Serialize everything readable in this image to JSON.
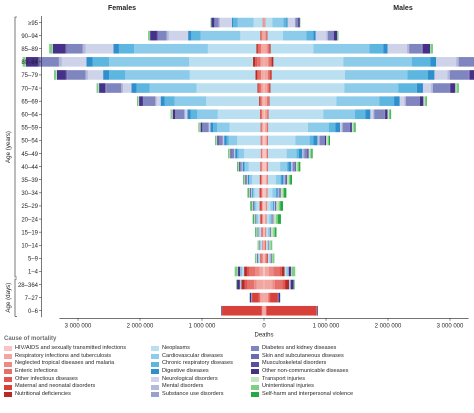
{
  "chart_data": {
    "type": "bar",
    "subtype": "population-pyramid (stacked, diverging)",
    "left_label": "Females",
    "right_label": "Males",
    "ylabel": "Age (years)",
    "ylabel_days": "Age (days)",
    "xlabel": "Deaths",
    "xlim": [
      -3300000,
      3300000
    ],
    "x_ticks": [
      {
        "value": -3000000,
        "label": "3 000 000"
      },
      {
        "value": -2000000,
        "label": "2 000 000"
      },
      {
        "value": -1000000,
        "label": "1 000 000"
      },
      {
        "value": 0,
        "label": "0"
      },
      {
        "value": 1000000,
        "label": "1 000 000"
      },
      {
        "value": 2000000,
        "label": "2 000 000"
      },
      {
        "value": 3000000,
        "label": "3 000 000"
      }
    ],
    "grid": false,
    "legend_position": "bottom",
    "categories": [
      "≥95",
      "90–94",
      "85–89",
      "80–84",
      "75–79",
      "70–74",
      "65–69",
      "60–64",
      "55–59",
      "50–54",
      "45–49",
      "40–44",
      "35–39",
      "30–34",
      "25–29",
      "20–24",
      "15–19",
      "10–14",
      "5–9",
      "1–4",
      "28–364",
      "7–27",
      "0–6"
    ],
    "day_group_start": 20,
    "legend_title": "Cause of mortality",
    "series": [
      {
        "name": "HIV/AIDS and sexually transmitted infections",
        "color": "#f7c6c2"
      },
      {
        "name": "Respiratory infections and tuberculosis",
        "color": "#f1a6a0"
      },
      {
        "name": "Neglected tropical diseases and malaria",
        "color": "#ec8a84"
      },
      {
        "name": "Enteric infections",
        "color": "#e5716b"
      },
      {
        "name": "Other infectious diseases",
        "color": "#df5650"
      },
      {
        "name": "Maternal and neonatal disorders",
        "color": "#d8403c"
      },
      {
        "name": "Nutritional deficiencies",
        "color": "#b52a25"
      },
      {
        "name": "Neoplasms",
        "color": "#b9dff1"
      },
      {
        "name": "Cardiovascular diseases",
        "color": "#8ccbe9"
      },
      {
        "name": "Chronic respiratory diseases",
        "color": "#5db6e0"
      },
      {
        "name": "Digestive diseases",
        "color": "#2f8fcd"
      },
      {
        "name": "Neurological disorders",
        "color": "#cfd3ea"
      },
      {
        "name": "Mental disorders",
        "color": "#b4b9dc"
      },
      {
        "name": "Substance use disorders",
        "color": "#9aa0cd"
      },
      {
        "name": "Diabetes and kidney diseases",
        "color": "#7f86bf"
      },
      {
        "name": "Skin and subcutaneous diseases",
        "color": "#6c6cb1"
      },
      {
        "name": "Musculoskeletal disorders",
        "color": "#5a4f9e"
      },
      {
        "name": "Other non-communicable diseases",
        "color": "#45308a"
      },
      {
        "name": "Transport injuries",
        "color": "#c2e6bf"
      },
      {
        "name": "Unintentional injuries",
        "color": "#7dcf85"
      },
      {
        "name": "Self-harm and interpersonal violence",
        "color": "#27a844"
      }
    ],
    "females": [
      [
        0,
        9000,
        0,
        6000,
        4000,
        0,
        3000,
        145000,
        260000,
        68000,
        24000,
        190000,
        22000,
        0,
        62000,
        2000,
        6000,
        48000,
        0,
        14000,
        0
      ],
      [
        0,
        28000,
        0,
        16000,
        9000,
        0,
        9000,
        320000,
        640000,
        150000,
        52000,
        310000,
        36000,
        0,
        140000,
        4000,
        13000,
        110000,
        3000,
        28000,
        2000
      ],
      [
        1000,
        46000,
        1000,
        35000,
        22000,
        0,
        20000,
        780000,
        1190000,
        245000,
        90000,
        445000,
        48000,
        1000,
        255000,
        8000,
        20000,
        200000,
        7000,
        46000,
        3000
      ],
      [
        2000,
        52000,
        2000,
        52000,
        34000,
        0,
        35000,
        1030000,
        1290000,
        265000,
        103000,
        395000,
        46000,
        2000,
        305000,
        10000,
        19000,
        198000,
        8000,
        40000,
        3000
      ],
      [
        2000,
        44000,
        3000,
        38000,
        25000,
        0,
        25000,
        1060000,
        1040000,
        260000,
        98000,
        245000,
        36000,
        2000,
        295000,
        8000,
        14000,
        145000,
        11000,
        30000,
        4000
      ],
      [
        4000,
        34000,
        4000,
        30000,
        19000,
        0,
        16000,
        980000,
        760000,
        210000,
        82000,
        135000,
        24000,
        3000,
        245000,
        6000,
        10000,
        98000,
        13000,
        21000,
        4000
      ],
      [
        6000,
        25000,
        4000,
        22000,
        14000,
        0,
        10000,
        850000,
        510000,
        160000,
        66000,
        66000,
        16000,
        3000,
        190000,
        4000,
        7000,
        62000,
        13000,
        15000,
        5000
      ],
      [
        8000,
        20000,
        4000,
        17000,
        10000,
        0,
        6000,
        680000,
        330000,
        106000,
        54000,
        34000,
        11000,
        4000,
        140000,
        3000,
        4000,
        42000,
        13000,
        13000,
        6000
      ],
      [
        12000,
        15000,
        4000,
        13000,
        8000,
        1000,
        4000,
        500000,
        200000,
        62000,
        44000,
        18000,
        9000,
        4000,
        96000,
        2000,
        3000,
        28000,
        13000,
        11000,
        8000
      ],
      [
        16000,
        12000,
        5000,
        10000,
        7000,
        2000,
        3000,
        380000,
        132000,
        38000,
        38000,
        11000,
        8000,
        5000,
        62000,
        2000,
        2000,
        22000,
        13000,
        10000,
        9000
      ],
      [
        18000,
        10000,
        5000,
        8000,
        6000,
        4000,
        2000,
        270000,
        88000,
        22000,
        32000,
        7000,
        7000,
        5000,
        38000,
        2000,
        2000,
        17000,
        12000,
        9000,
        10000
      ],
      [
        20000,
        9000,
        5000,
        7000,
        5000,
        12000,
        2000,
        186000,
        60000,
        13000,
        26000,
        5000,
        7000,
        5000,
        22000,
        1000,
        2000,
        14000,
        11000,
        8000,
        12000
      ],
      [
        21000,
        8000,
        5000,
        7000,
        5000,
        22000,
        2000,
        120000,
        42000,
        8000,
        19000,
        4000,
        6000,
        4000,
        14000,
        1000,
        1000,
        12000,
        11000,
        8000,
        14000
      ],
      [
        19000,
        7000,
        5000,
        6000,
        5000,
        30000,
        2000,
        76000,
        29000,
        5000,
        13000,
        3000,
        5000,
        3000,
        9000,
        1000,
        1000,
        11000,
        11000,
        8000,
        16000
      ],
      [
        16000,
        6000,
        5000,
        6000,
        5000,
        32000,
        2000,
        50000,
        20000,
        3000,
        9000,
        3000,
        4000,
        2000,
        6000,
        1000,
        1000,
        10000,
        12000,
        9000,
        18000
      ],
      [
        12000,
        5000,
        5000,
        6000,
        5000,
        27000,
        2000,
        35000,
        14000,
        2000,
        6000,
        3000,
        3000,
        2000,
        4000,
        1000,
        1000,
        9000,
        13000,
        9000,
        18000
      ],
      [
        7000,
        4000,
        6000,
        7000,
        5000,
        12000,
        2000,
        26000,
        9000,
        2000,
        4000,
        3000,
        2000,
        1000,
        3000,
        1000,
        1000,
        8000,
        13000,
        11000,
        14000
      ],
      [
        3000,
        4000,
        7000,
        7000,
        6000,
        0,
        3000,
        19000,
        5000,
        2000,
        3000,
        3000,
        1000,
        0,
        2000,
        1000,
        1000,
        8000,
        9000,
        12000,
        5000
      ],
      [
        4000,
        8000,
        16000,
        16000,
        11000,
        0,
        7000,
        22000,
        6000,
        3000,
        3000,
        4000,
        1000,
        0,
        2000,
        1000,
        1000,
        10000,
        10000,
        18000,
        3000
      ],
      [
        13000,
        58000,
        74000,
        90000,
        40000,
        0,
        46000,
        28000,
        12000,
        4000,
        5000,
        8000,
        1000,
        0,
        3000,
        2000,
        1000,
        34000,
        8000,
        44000,
        2000
      ],
      [
        3000,
        115000,
        40000,
        105000,
        32000,
        16000,
        55000,
        3000,
        8000,
        2000,
        3000,
        4000,
        0,
        0,
        2000,
        2000,
        0,
        45000,
        1000,
        14000,
        1000
      ],
      [
        1000,
        52000,
        6000,
        14000,
        14000,
        104000,
        6000,
        0,
        3000,
        1000,
        1000,
        2000,
        0,
        0,
        0,
        1000,
        0,
        25000,
        0,
        4000,
        0
      ],
      [
        1000,
        26000,
        1000,
        2000,
        6000,
        640000,
        1000,
        0,
        1000,
        0,
        0,
        1000,
        0,
        0,
        0,
        0,
        0,
        12000,
        0,
        3000,
        0
      ]
    ],
    "males": [
      [
        0,
        10000,
        0,
        5000,
        4000,
        0,
        3000,
        115000,
        175000,
        50000,
        18000,
        115000,
        13000,
        0,
        40000,
        1000,
        3000,
        26000,
        0,
        9000,
        0
      ],
      [
        0,
        27000,
        0,
        12000,
        8000,
        0,
        8000,
        250000,
        380000,
        112000,
        38000,
        172000,
        20000,
        1000,
        92000,
        3000,
        6000,
        52000,
        2000,
        18000,
        1000
      ],
      [
        1000,
        52000,
        1000,
        22000,
        15000,
        0,
        17000,
        690000,
        900000,
        225000,
        72000,
        310000,
        34000,
        2000,
        205000,
        6000,
        10000,
        116000,
        6000,
        36000,
        4000
      ],
      [
        2000,
        66000,
        2000,
        30000,
        24000,
        0,
        28000,
        1130000,
        1100000,
        300000,
        96000,
        320000,
        38000,
        3000,
        300000,
        7000,
        11000,
        126000,
        11000,
        40000,
        5000
      ],
      [
        3000,
        56000,
        3000,
        25000,
        18000,
        0,
        20000,
        1180000,
        1010000,
        330000,
        104000,
        210000,
        34000,
        4000,
        305000,
        6000,
        9000,
        102000,
        16000,
        33000,
        7000
      ],
      [
        5000,
        46000,
        4000,
        21000,
        14000,
        0,
        14000,
        1190000,
        870000,
        300000,
        100000,
        130000,
        25000,
        5000,
        270000,
        5000,
        7000,
        80000,
        20000,
        26000,
        9000
      ],
      [
        8000,
        36000,
        5000,
        18000,
        11000,
        0,
        10000,
        1080000,
        690000,
        240000,
        92000,
        72000,
        18000,
        7000,
        220000,
        3000,
        5000,
        56000,
        22000,
        22000,
        11000
      ],
      [
        12000,
        28000,
        5000,
        15000,
        9000,
        0,
        7000,
        880000,
        510000,
        168000,
        82000,
        40000,
        14000,
        10000,
        168000,
        2000,
        3000,
        40000,
        23000,
        20000,
        14000
      ],
      [
        17000,
        22000,
        5000,
        12000,
        7000,
        0,
        5000,
        640000,
        340000,
        104000,
        74000,
        22000,
        12000,
        12000,
        114000,
        2000,
        2000,
        28000,
        24000,
        19000,
        17000
      ],
      [
        23000,
        18000,
        5000,
        10000,
        6000,
        0,
        4000,
        440000,
        230000,
        62000,
        66000,
        13000,
        11000,
        12000,
        78000,
        1000,
        2000,
        22000,
        25000,
        18000,
        19000
      ],
      [
        28000,
        15000,
        5000,
        9000,
        5000,
        0,
        3000,
        300000,
        160000,
        38000,
        56000,
        8000,
        11000,
        12000,
        48000,
        1000,
        2000,
        18000,
        26000,
        18000,
        22000
      ],
      [
        30000,
        13000,
        5000,
        8000,
        5000,
        0,
        3000,
        196000,
        112000,
        22000,
        46000,
        5000,
        10000,
        11000,
        30000,
        1000,
        1000,
        15000,
        28000,
        19000,
        26000
      ],
      [
        30000,
        12000,
        5000,
        8000,
        5000,
        0,
        3000,
        126000,
        78000,
        13000,
        34000,
        4000,
        9000,
        9000,
        19000,
        1000,
        1000,
        13000,
        31000,
        20000,
        31000
      ],
      [
        26000,
        11000,
        5000,
        7000,
        5000,
        0,
        3000,
        80000,
        54000,
        8000,
        24000,
        3000,
        8000,
        7000,
        12000,
        1000,
        1000,
        12000,
        34000,
        22000,
        38000
      ],
      [
        21000,
        10000,
        5000,
        7000,
        5000,
        0,
        3000,
        54000,
        38000,
        5000,
        15000,
        3000,
        6000,
        5000,
        8000,
        1000,
        1000,
        11000,
        38000,
        25000,
        46000
      ],
      [
        14000,
        9000,
        5000,
        7000,
        5000,
        0,
        3000,
        40000,
        26000,
        4000,
        10000,
        3000,
        5000,
        3000,
        5000,
        1000,
        1000,
        10000,
        44000,
        28000,
        50000
      ],
      [
        7000,
        6000,
        6000,
        8000,
        6000,
        0,
        3000,
        30000,
        15000,
        3000,
        6000,
        3000,
        3000,
        1000,
        3000,
        1000,
        1000,
        9000,
        38000,
        26000,
        26000
      ],
      [
        3000,
        5000,
        8000,
        8000,
        6000,
        0,
        3000,
        22000,
        7000,
        2000,
        4000,
        3000,
        1000,
        0,
        2000,
        1000,
        1000,
        9000,
        18000,
        22000,
        7000
      ],
      [
        4000,
        9000,
        17000,
        17000,
        12000,
        0,
        7000,
        24000,
        7000,
        3000,
        3000,
        4000,
        1000,
        0,
        2000,
        1000,
        1000,
        11000,
        14000,
        28000,
        3000
      ],
      [
        13000,
        62000,
        76000,
        95000,
        42000,
        0,
        44000,
        30000,
        13000,
        4000,
        5000,
        8000,
        1000,
        0,
        3000,
        2000,
        1000,
        36000,
        10000,
        56000,
        2000
      ],
      [
        3000,
        130000,
        42000,
        118000,
        34000,
        20000,
        58000,
        3000,
        9000,
        2000,
        3000,
        4000,
        0,
        0,
        2000,
        2000,
        0,
        50000,
        1000,
        16000,
        1000
      ],
      [
        1000,
        60000,
        6000,
        16000,
        15000,
        120000,
        6000,
        0,
        3000,
        1000,
        1000,
        2000,
        0,
        0,
        0,
        1000,
        0,
        28000,
        0,
        5000,
        0
      ],
      [
        1000,
        30000,
        1000,
        2000,
        7000,
        810000,
        1000,
        0,
        1000,
        0,
        0,
        1000,
        0,
        0,
        0,
        0,
        0,
        14000,
        0,
        3000,
        0
      ]
    ]
  }
}
